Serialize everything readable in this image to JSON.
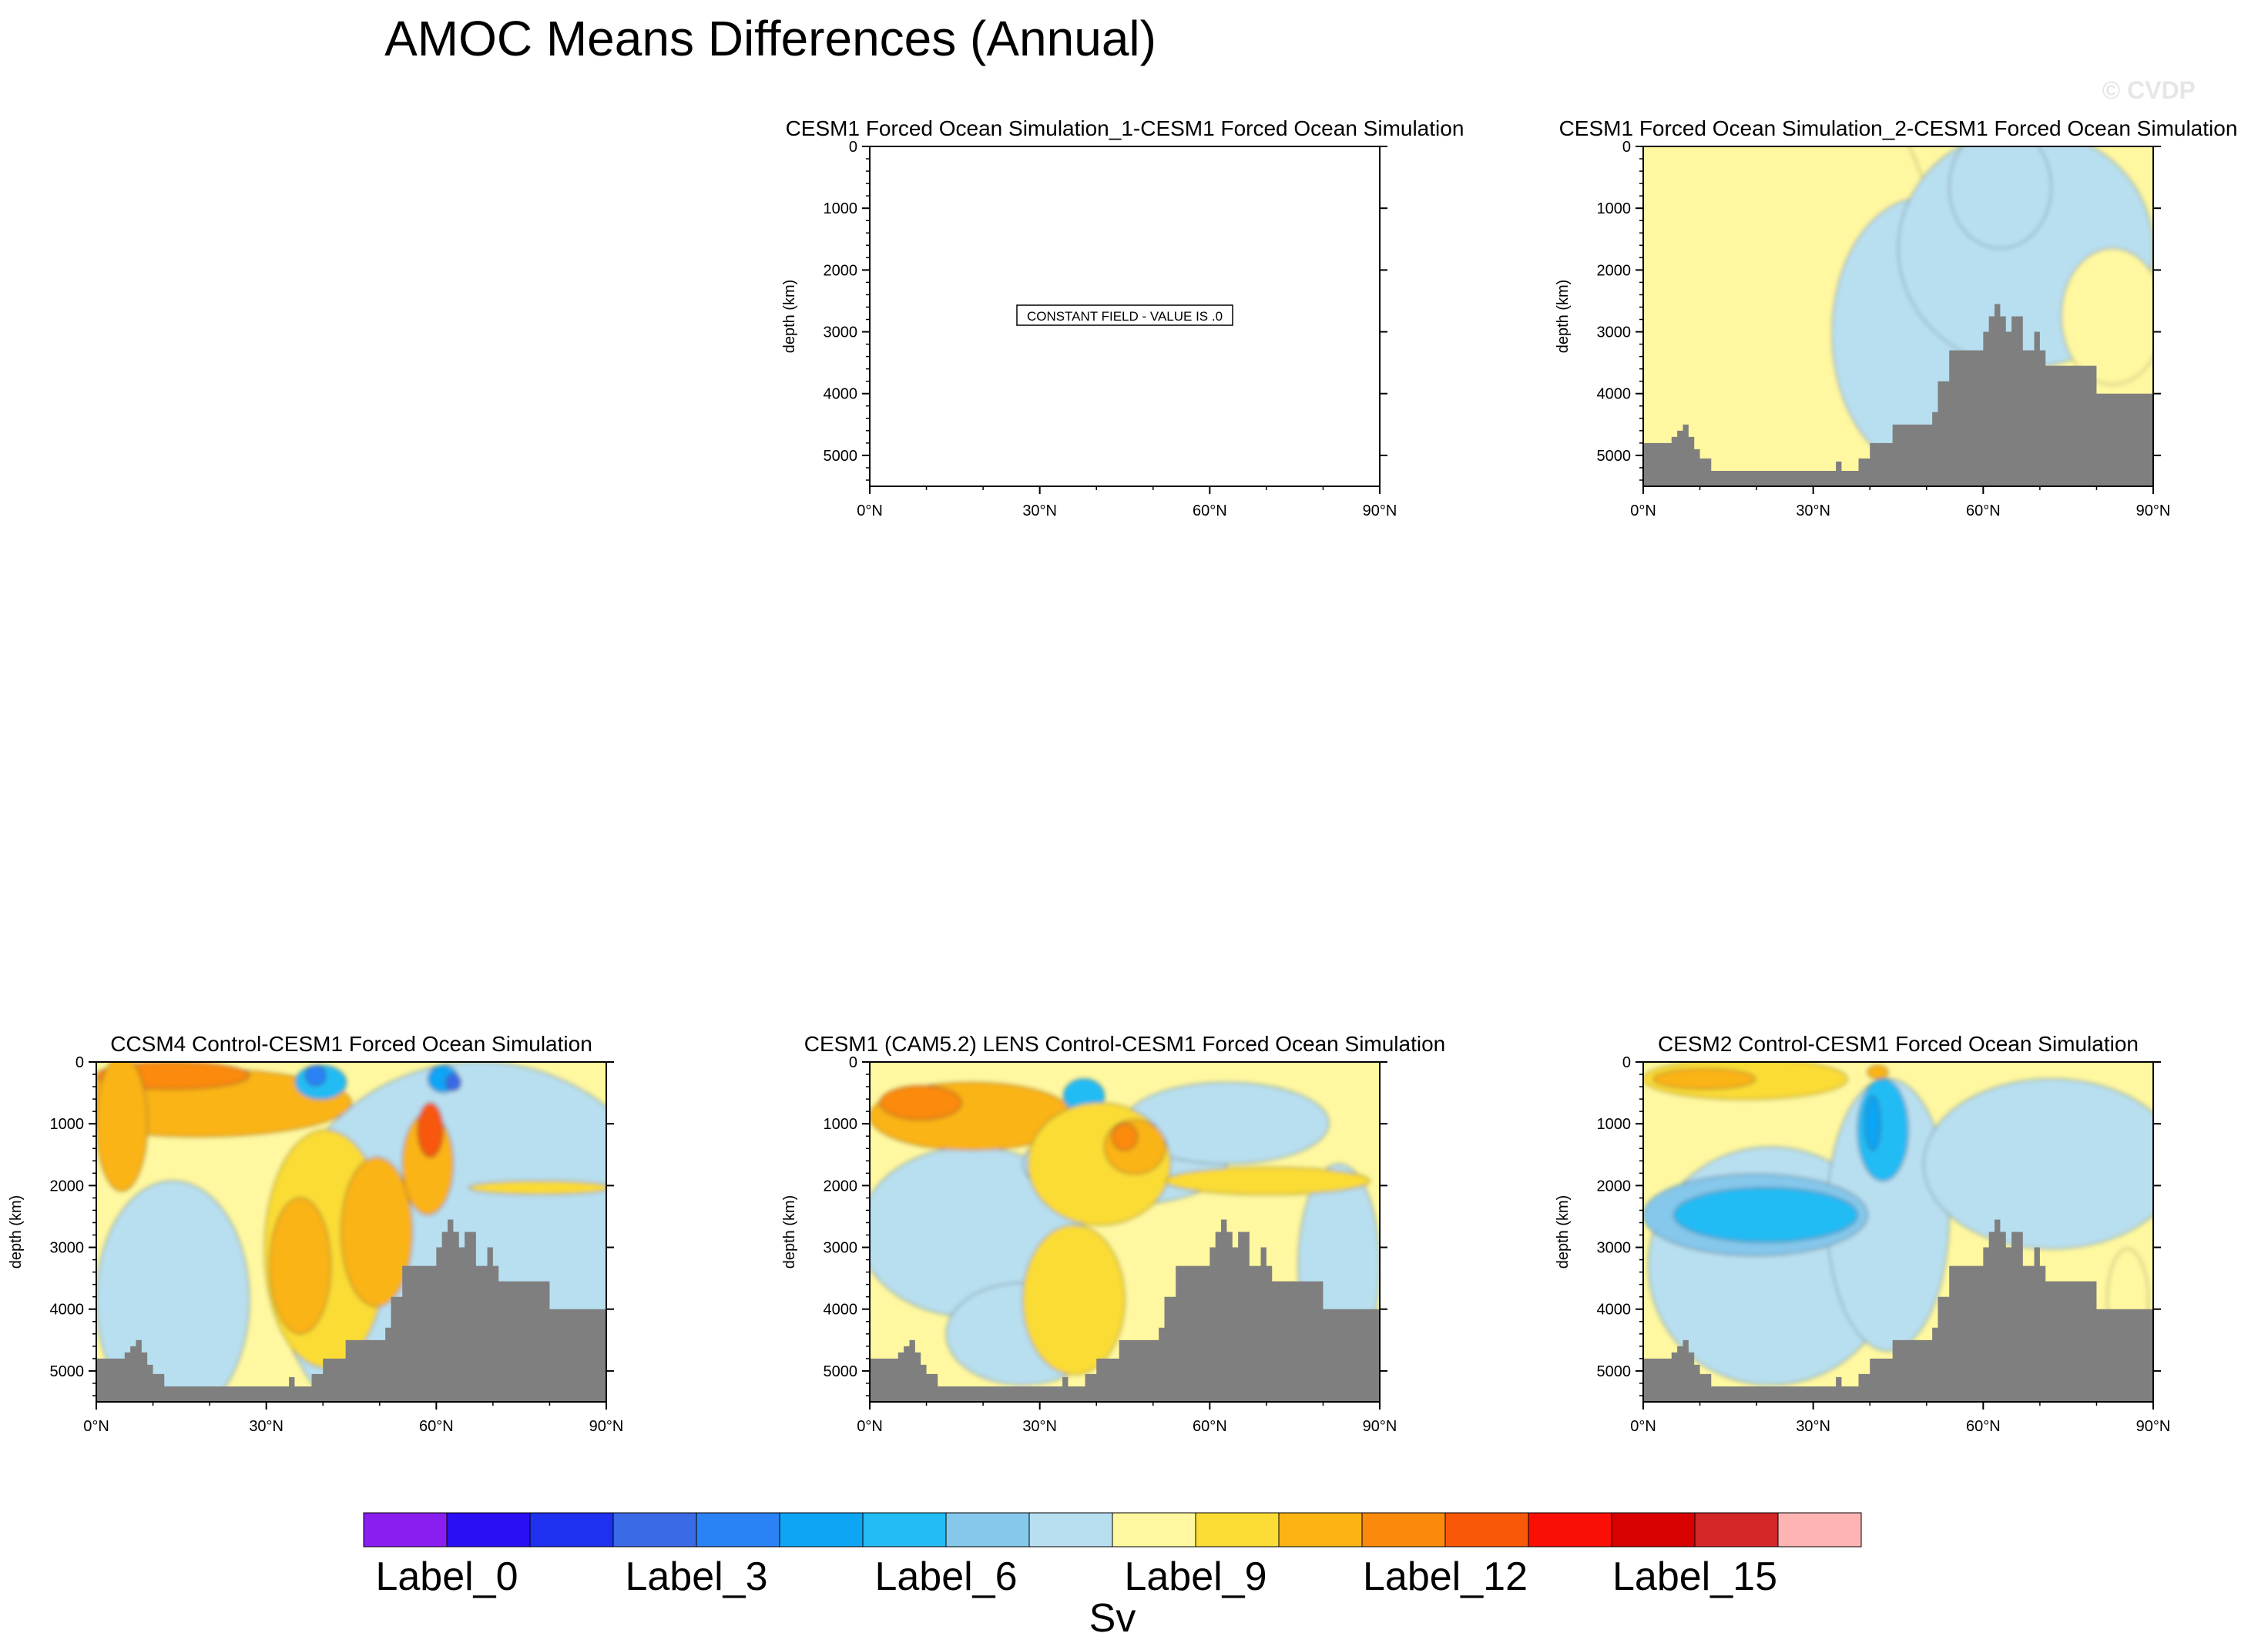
{
  "figure": {
    "title": "AMOC Means Differences (Annual)",
    "watermark": "© CVDP",
    "colorbar_unit": "Sv",
    "constant_field_text": "CONSTANT FIELD - VALUE IS .0"
  },
  "colors": {
    "palette": [
      "#8a1ef0",
      "#2a0ff5",
      "#1e31f0",
      "#3a6ae6",
      "#2b82f5",
      "#0fa5f5",
      "#23bcf5",
      "#85c8ec",
      "#b8dff0",
      "#fff8a0",
      "#fbdc34",
      "#fbb414",
      "#fb8a0c",
      "#f85808",
      "#fa0e05",
      "#d80000",
      "#d42626",
      "#ffb4b4"
    ],
    "land": "#7f7f7f"
  },
  "chart_data": [
    {
      "id": "p1",
      "type": "heatmap",
      "title": "CESM1 Forced Ocean Simulation_1-CESM1 Forced Ocean Simulation",
      "ylabel": "depth (km)",
      "xlim": [
        0,
        90
      ],
      "ylim": [
        0,
        5500
      ],
      "xticks": [
        "0°N",
        "30°N",
        "60°N",
        "90°N"
      ],
      "yticks": [
        "0",
        "1000",
        "2000",
        "3000",
        "4000",
        "5000"
      ],
      "constant": true,
      "bathymetry": false
    },
    {
      "id": "p2",
      "type": "heatmap",
      "title": "CESM1 Forced Ocean Simulation_2-CESM1 Forced Ocean Simulation",
      "ylabel": "depth (km)",
      "xlim": [
        0,
        90
      ],
      "ylim": [
        0,
        5500
      ],
      "xticks": [
        "0°N",
        "30°N",
        "60°N",
        "90°N"
      ],
      "yticks": [
        "0",
        "1000",
        "2000",
        "3000",
        "4000",
        "5000"
      ],
      "constant": false,
      "bathymetry": true
    },
    {
      "id": "p3",
      "type": "heatmap",
      "title": "CCSM4 Control-CESM1 Forced Ocean Simulation",
      "ylabel": "depth (km)",
      "xlim": [
        0,
        90
      ],
      "ylim": [
        0,
        5500
      ],
      "xticks": [
        "0°N",
        "30°N",
        "60°N",
        "90°N"
      ],
      "yticks": [
        "0",
        "1000",
        "2000",
        "3000",
        "4000",
        "5000"
      ],
      "constant": false,
      "bathymetry": true
    },
    {
      "id": "p4",
      "type": "heatmap",
      "title": "CESM1 (CAM5.2) LENS Control-CESM1 Forced Ocean Simulation",
      "ylabel": "depth (km)",
      "xlim": [
        0,
        90
      ],
      "ylim": [
        0,
        5500
      ],
      "xticks": [
        "0°N",
        "30°N",
        "60°N",
        "90°N"
      ],
      "yticks": [
        "0",
        "1000",
        "2000",
        "3000",
        "4000",
        "5000"
      ],
      "constant": false,
      "bathymetry": true
    },
    {
      "id": "p5",
      "type": "heatmap",
      "title": "CESM2 Control-CESM1 Forced Ocean Simulation",
      "ylabel": "depth (km)",
      "xlim": [
        0,
        90
      ],
      "ylim": [
        0,
        5500
      ],
      "xticks": [
        "0°N",
        "30°N",
        "60°N",
        "90°N"
      ],
      "yticks": [
        "0",
        "1000",
        "2000",
        "3000",
        "4000",
        "5000"
      ],
      "constant": false,
      "bathymetry": true
    }
  ],
  "colorbar": {
    "labels": [
      "Label_0",
      "Label_3",
      "Label_6",
      "Label_9",
      "Label_12",
      "Label_15"
    ],
    "label_bins": [
      0,
      3,
      6,
      9,
      12,
      15
    ]
  },
  "bathymetry_profile": {
    "lat": [
      0,
      2,
      4,
      5,
      6,
      7,
      8,
      9,
      10,
      12,
      14,
      16,
      18,
      20,
      22,
      24,
      26,
      28,
      30,
      32,
      34,
      35,
      36,
      38,
      40,
      42,
      44,
      45,
      46,
      48,
      50,
      51,
      52,
      54,
      56,
      58,
      60,
      61,
      62,
      63,
      64,
      65,
      66,
      67,
      68,
      69,
      70,
      71,
      72,
      74,
      76,
      78,
      80,
      82,
      84,
      86,
      88,
      90
    ],
    "depth": [
      4800,
      4800,
      4800,
      4700,
      4600,
      4500,
      4700,
      4900,
      5050,
      5250,
      5250,
      5250,
      5250,
      5250,
      5250,
      5250,
      5250,
      5250,
      5250,
      5250,
      5100,
      5250,
      5250,
      5050,
      4800,
      4800,
      4500,
      4500,
      4500,
      4500,
      4500,
      4300,
      3800,
      3300,
      3300,
      3300,
      3000,
      2750,
      2550,
      2750,
      3000,
      2750,
      2750,
      3300,
      3300,
      3000,
      3300,
      3550,
      3550,
      3550,
      3550,
      3550,
      4000,
      4000,
      4000,
      4000,
      4000,
      4000
    ]
  }
}
